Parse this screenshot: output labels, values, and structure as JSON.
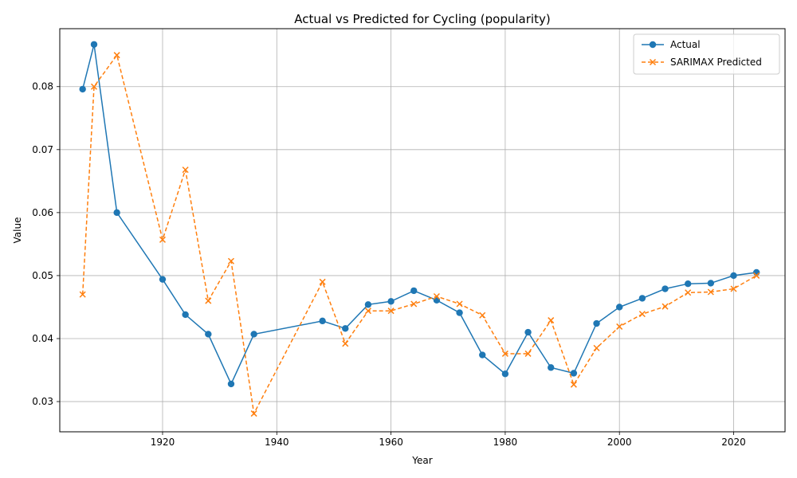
{
  "chart_data": {
    "type": "line",
    "title": "Actual vs Predicted for Cycling (popularity)",
    "xlabel": "Year",
    "ylabel": "Value",
    "xlim": [
      1902,
      2029
    ],
    "ylim": [
      0.0252,
      0.0892
    ],
    "xticks": [
      1920,
      1940,
      1960,
      1980,
      2000,
      2020
    ],
    "yticks": [
      0.03,
      0.04,
      0.05,
      0.06,
      0.07,
      0.08
    ],
    "grid": true,
    "legend_position": "top-right",
    "series": [
      {
        "name": "Actual",
        "color": "#1f77b4",
        "marker": "circle",
        "linestyle": "solid",
        "points": [
          [
            1906,
            0.0796
          ],
          [
            1908,
            0.0867
          ],
          [
            1912,
            0.06
          ],
          [
            1920,
            0.0494
          ],
          [
            1924,
            0.0438
          ],
          [
            1928,
            0.0407
          ],
          [
            1932,
            0.0328
          ],
          [
            1936,
            0.0407
          ],
          [
            1948,
            0.0428
          ],
          [
            1952,
            0.0416
          ],
          [
            1956,
            0.0454
          ],
          [
            1960,
            0.0459
          ],
          [
            1964,
            0.0476
          ],
          [
            1968,
            0.0461
          ],
          [
            1972,
            0.0441
          ],
          [
            1976,
            0.0374
          ],
          [
            1980,
            0.0344
          ],
          [
            1984,
            0.041
          ],
          [
            1988,
            0.0354
          ],
          [
            1992,
            0.0345
          ],
          [
            1996,
            0.0424
          ],
          [
            2000,
            0.045
          ],
          [
            2004,
            0.0464
          ],
          [
            2008,
            0.0479
          ],
          [
            2012,
            0.0487
          ],
          [
            2016,
            0.0488
          ],
          [
            2020,
            0.05
          ],
          [
            2024,
            0.0505
          ]
        ]
      },
      {
        "name": "SARIMAX Predicted",
        "color": "#ff7f0e",
        "marker": "x",
        "linestyle": "dashed",
        "points": [
          [
            1906,
            0.047
          ],
          [
            1908,
            0.08
          ],
          [
            1912,
            0.085
          ],
          [
            1920,
            0.0557
          ],
          [
            1924,
            0.0668
          ],
          [
            1928,
            0.046
          ],
          [
            1932,
            0.0523
          ],
          [
            1936,
            0.0281
          ],
          [
            1948,
            0.049
          ],
          [
            1952,
            0.0392
          ],
          [
            1956,
            0.0444
          ],
          [
            1960,
            0.0444
          ],
          [
            1964,
            0.0455
          ],
          [
            1968,
            0.0467
          ],
          [
            1972,
            0.0455
          ],
          [
            1976,
            0.0437
          ],
          [
            1980,
            0.0376
          ],
          [
            1984,
            0.0376
          ],
          [
            1988,
            0.0429
          ],
          [
            1992,
            0.0327
          ],
          [
            1996,
            0.0385
          ],
          [
            2000,
            0.0419
          ],
          [
            2004,
            0.0439
          ],
          [
            2008,
            0.0451
          ],
          [
            2012,
            0.0473
          ],
          [
            2016,
            0.0474
          ],
          [
            2020,
            0.0479
          ],
          [
            2024,
            0.05
          ]
        ]
      }
    ]
  }
}
